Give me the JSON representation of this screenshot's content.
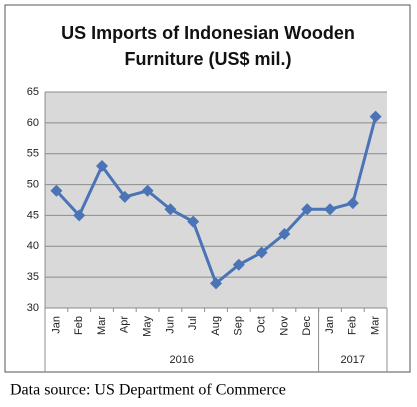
{
  "chart_data": {
    "type": "line",
    "title": [
      "US Imports of Indonesian Wooden",
      "Furniture (US$ mil.)"
    ],
    "categories": [
      "Jan",
      "Feb",
      "Mar",
      "Apr",
      "May",
      "Jun",
      "Jul",
      "Aug",
      "Sep",
      "Oct",
      "Nov",
      "Dec",
      "Jan",
      "Feb",
      "Mar"
    ],
    "groups": [
      {
        "label": "2016",
        "span": 12
      },
      {
        "label": "2017",
        "span": 3
      }
    ],
    "series": [
      {
        "name": "US Imports",
        "color": "#4a74b5",
        "values": [
          49,
          45,
          53,
          48,
          49,
          46,
          44,
          34,
          37,
          39,
          42,
          46,
          46,
          47,
          61
        ]
      }
    ],
    "ylim": [
      30,
      65
    ],
    "yticks": [
      30,
      35,
      40,
      45,
      50,
      55,
      60,
      65
    ],
    "grid": true,
    "source": "Data source: US Department of Commerce"
  }
}
